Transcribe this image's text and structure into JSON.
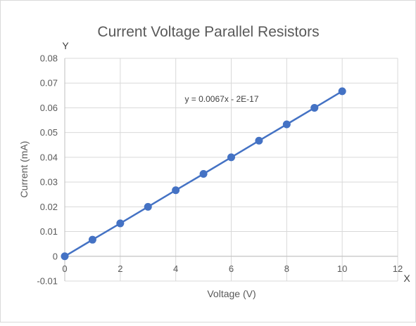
{
  "chart_data": {
    "type": "scatter",
    "title": "Current Voltage Parallel Resistors",
    "xlabel": "Voltage (V)",
    "ylabel": "Current (mA)",
    "x_axis_marker": "X",
    "y_axis_marker": "Y",
    "xlim": [
      0,
      12
    ],
    "ylim": [
      -0.01,
      0.08
    ],
    "x_ticks": [
      0,
      2,
      4,
      6,
      8,
      10,
      12
    ],
    "y_ticks": [
      -0.01,
      0,
      0.01,
      0.02,
      0.03,
      0.04,
      0.05,
      0.06,
      0.07,
      0.08
    ],
    "x_tick_labels": [
      "0",
      "2",
      "4",
      "6",
      "8",
      "10",
      "12"
    ],
    "y_tick_labels": [
      "-0.01",
      "0",
      "0.01",
      "0.02",
      "0.03",
      "0.04",
      "0.05",
      "0.06",
      "0.07",
      "0.08"
    ],
    "grid": true,
    "series": [
      {
        "x": [
          0,
          1,
          2,
          3,
          4,
          5,
          6,
          7,
          8,
          9,
          10
        ],
        "y": [
          0,
          0.0067,
          0.0133,
          0.02,
          0.0267,
          0.0333,
          0.04,
          0.0467,
          0.0533,
          0.06,
          0.0667
        ],
        "color": "#4472C4"
      }
    ],
    "trendline": {
      "type": "linear",
      "equation": "y = 0.0067x - 2E-17",
      "color": "#4472C4"
    }
  }
}
